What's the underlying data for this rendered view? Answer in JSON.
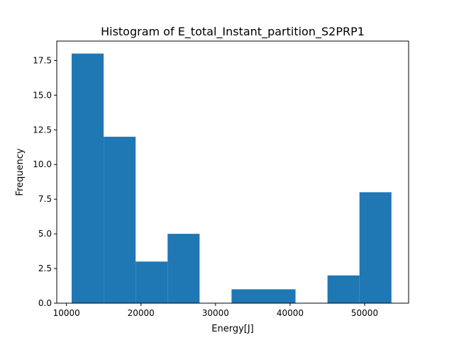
{
  "chart_data": {
    "type": "bar",
    "title": "Histogram of E_total_Instant_partition_S2PRP1",
    "xlabel": "Energy[J]",
    "ylabel": "Frequency",
    "xlim": [
      8700,
      55900
    ],
    "ylim": [
      0,
      18.9
    ],
    "bin_edges": [
      10700,
      14990,
      19280,
      23570,
      27860,
      32150,
      36440,
      40730,
      45020,
      49310,
      53600
    ],
    "values": [
      18,
      12,
      3,
      5,
      0,
      1,
      1,
      0,
      2,
      8
    ],
    "xticks": [
      10000,
      20000,
      30000,
      40000,
      50000
    ],
    "xtick_labels": [
      "10000",
      "20000",
      "30000",
      "40000",
      "50000"
    ],
    "yticks": [
      0,
      2.5,
      5,
      7.5,
      10,
      12.5,
      15,
      17.5
    ],
    "ytick_labels": [
      "0.0",
      "2.5",
      "5.0",
      "7.5",
      "10.0",
      "12.5",
      "15.0",
      "17.5"
    ],
    "bar_color": "#1f77b4",
    "grid": false,
    "legend": "none"
  }
}
